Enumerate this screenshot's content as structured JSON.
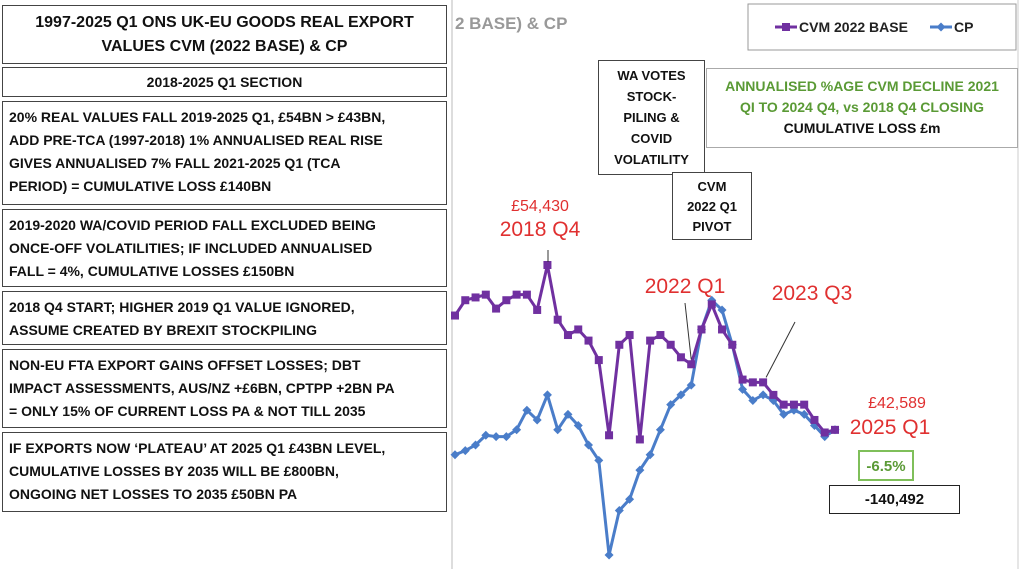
{
  "panels": {
    "title": [
      "1997-2025 Q1 ONS UK-EU GOODS REAL EXPORT",
      "VALUES CVM (2022 BASE) & CP"
    ],
    "section": "2018-2025 Q1 SECTION",
    "notes": [
      [
        "20% REAL VALUES FALL 2019-2025 Q1, £54BN > £43BN,",
        "ADD PRE-TCA (1997-2018) 1% ANNUALISED REAL RISE",
        "GIVES ANNUALISED 7% FALL 2021-2025 Q1 (TCA",
        "PERIOD) = CUMULATIVE LOSS £140BN"
      ],
      [
        "2019-2020 WA/COVID PERIOD FALL EXCLUDED BEING",
        "ONCE-OFF VOLATILITIES; IF INCLUDED ANNUALISED",
        "FALL = 4%, CUMULATIVE LOSSES £150BN"
      ],
      [
        "2018 Q4 START; HIGHER 2019 Q1 VALUE IGNORED,",
        "ASSUME CREATED BY BREXIT STOCKPILING"
      ],
      [
        "NON-EU FTA EXPORT GAINS OFFSET LOSSES; DBT",
        "IMPACT ASSESSMENTS, AUS/NZ +£6BN, CPTPP +2BN PA",
        "= ONLY 15% OF CURRENT LOSS PA & NOT TILL 2035"
      ],
      [
        "IF EXPORTS NOW ‘PLATEAU’ AT 2025 Q1 £43BN LEVEL,",
        "CUMULATIVE LOSSES BY 2035 WILL BE £800BN,",
        "ONGOING NET LOSSES TO 2035 £50BN PA"
      ]
    ]
  },
  "annotations": {
    "wa": [
      "WA VOTES",
      "STOCK-",
      "PILING &",
      "COVID",
      "VOLATILITY"
    ],
    "pivot": [
      "CVM",
      "2022 Q1",
      "PIVOT"
    ],
    "decline": [
      "ANNUALISED %AGE CVM DECLINE 2021",
      "QI TO 2024 Q4, vs 2018 Q4 CLOSING"
    ],
    "loss_title": "CUMULATIVE LOSS £m",
    "decline_value": "-6.5%",
    "loss_value": "-140,492"
  },
  "chart_data": {
    "type": "line",
    "title": "2 BASE) & CP",
    "categories": [
      null,
      null,
      null,
      null,
      null,
      null,
      null,
      null,
      null,
      "2018 Q4",
      null,
      null,
      null,
      null,
      null,
      null,
      null,
      null,
      null,
      null,
      null,
      null,
      null,
      "2022 Q1",
      null,
      null,
      null,
      null,
      null,
      null,
      "2023 Q3",
      null,
      null,
      null,
      null,
      null,
      null,
      "2025 Q1"
    ],
    "series": [
      {
        "name": "CVM 2022 BASE",
        "color": "#7030a0",
        "marker": "square",
        "values": [
          50800,
          51900,
          52100,
          52300,
          51300,
          51900,
          52300,
          52300,
          51200,
          54430,
          50500,
          49400,
          49800,
          49000,
          47600,
          42200,
          48700,
          49400,
          41900,
          49000,
          49400,
          48700,
          47800,
          47300,
          49800,
          51600,
          49800,
          48700,
          46200,
          46000,
          46000,
          45100,
          44400,
          44400,
          44400,
          43300,
          42400,
          42589
        ],
        "value_labels": [
          null,
          null,
          null,
          null,
          null,
          null,
          null,
          null,
          null,
          "£54,430",
          null,
          null,
          null,
          null,
          null,
          null,
          null,
          null,
          null,
          null,
          null,
          null,
          null,
          null,
          null,
          null,
          null,
          null,
          null,
          null,
          null,
          null,
          null,
          null,
          null,
          null,
          null,
          "£42,589"
        ]
      },
      {
        "name": "CP",
        "color": "#4a7dc9",
        "marker": "diamond",
        "values": [
          40800,
          41100,
          41500,
          42200,
          42100,
          42100,
          42600,
          44000,
          43300,
          45100,
          42600,
          43700,
          42900,
          41500,
          40400,
          33600,
          36800,
          37600,
          39700,
          40800,
          42600,
          44400,
          45100,
          45800,
          49800,
          51900,
          51200,
          48700,
          45500,
          44700,
          45100,
          44700,
          43700,
          44000,
          43700,
          42900,
          42100,
          42600
        ]
      }
    ],
    "legend": "top-right"
  }
}
